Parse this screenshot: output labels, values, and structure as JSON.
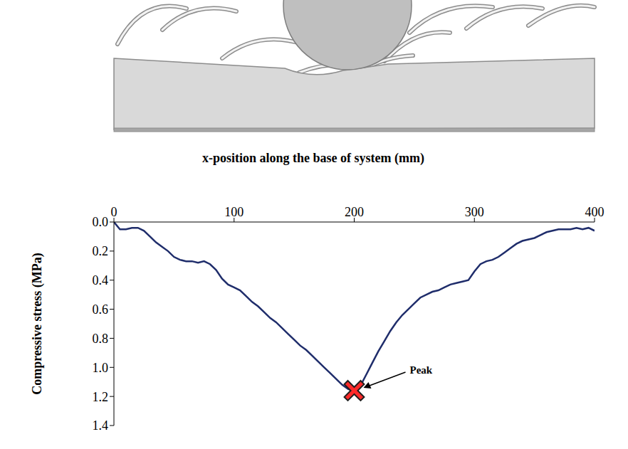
{
  "chart_data": {
    "type": "line",
    "xlabel": "x-position along the base of system (mm)",
    "ylabel": "Compressive stress (MPa)",
    "x": [
      0,
      5,
      10,
      15,
      20,
      25,
      30,
      35,
      40,
      45,
      50,
      55,
      60,
      65,
      70,
      75,
      80,
      85,
      90,
      95,
      100,
      105,
      110,
      115,
      120,
      125,
      130,
      135,
      140,
      145,
      150,
      155,
      160,
      165,
      170,
      175,
      180,
      185,
      190,
      195,
      200,
      205,
      210,
      215,
      220,
      225,
      230,
      235,
      240,
      245,
      250,
      255,
      260,
      265,
      270,
      275,
      280,
      285,
      290,
      295,
      300,
      305,
      310,
      315,
      320,
      325,
      330,
      335,
      340,
      345,
      350,
      355,
      360,
      365,
      370,
      375,
      380,
      385,
      390,
      395,
      400
    ],
    "values": [
      0.0,
      0.05,
      0.05,
      0.04,
      0.04,
      0.06,
      0.1,
      0.14,
      0.17,
      0.2,
      0.24,
      0.26,
      0.27,
      0.27,
      0.28,
      0.27,
      0.29,
      0.33,
      0.39,
      0.43,
      0.45,
      0.47,
      0.51,
      0.55,
      0.58,
      0.62,
      0.66,
      0.69,
      0.73,
      0.77,
      0.81,
      0.85,
      0.88,
      0.92,
      0.96,
      1.0,
      1.04,
      1.08,
      1.12,
      1.15,
      1.16,
      1.13,
      1.05,
      0.97,
      0.89,
      0.82,
      0.75,
      0.69,
      0.64,
      0.6,
      0.56,
      0.52,
      0.5,
      0.48,
      0.47,
      0.45,
      0.43,
      0.42,
      0.41,
      0.4,
      0.34,
      0.29,
      0.27,
      0.26,
      0.24,
      0.21,
      0.18,
      0.15,
      0.13,
      0.12,
      0.11,
      0.09,
      0.07,
      0.06,
      0.05,
      0.05,
      0.05,
      0.04,
      0.05,
      0.04,
      0.06
    ],
    "color": "#1f2d6b",
    "xlim": [
      0,
      400
    ],
    "xticks": [
      0,
      100,
      200,
      300,
      400
    ],
    "ylim": [
      0,
      1.4
    ],
    "yticks": [
      {
        "value": 0,
        "label": "0.0"
      },
      0.2,
      0.4,
      0.6,
      0.8,
      {
        "value": 1,
        "label": "1.0"
      },
      1.2,
      1.4
    ],
    "grid": false,
    "annotations": [
      {
        "text": "Peak",
        "x": 200,
        "y": 1.16
      }
    ]
  }
}
